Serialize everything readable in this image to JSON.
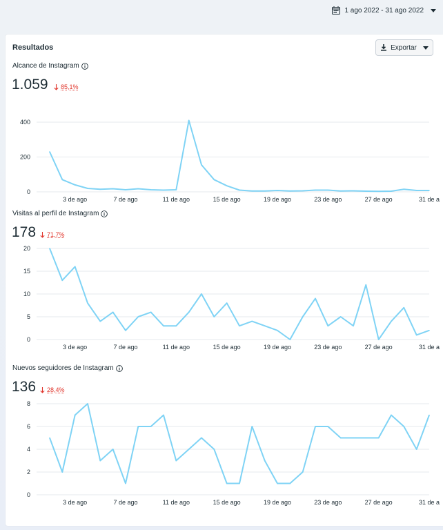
{
  "header": {
    "date_range": "1 ago 2022 - 31 ago 2022"
  },
  "card": {
    "title": "Resultados",
    "export_label": "Exportar"
  },
  "colors": {
    "line": "#7fd3f5",
    "grid": "#e6e9ed",
    "negative": "#e0342b"
  },
  "chart_data": [
    {
      "type": "line",
      "title": "Alcance de Instagram",
      "total": "1.059",
      "change": "85,1%",
      "change_direction": "down",
      "categories": [
        "3 de ago",
        "7 de ago",
        "11 de ago",
        "15 de ago",
        "19 de ago",
        "23 de ago",
        "27 de ago",
        "31 de a"
      ],
      "x": [
        1,
        2,
        3,
        4,
        5,
        6,
        7,
        8,
        9,
        10,
        11,
        12,
        13,
        14,
        15,
        16,
        17,
        18,
        19,
        20,
        21,
        22,
        23,
        24,
        25,
        26,
        27,
        28,
        29,
        30,
        31
      ],
      "series": [
        {
          "values": [
            230,
            70,
            40,
            20,
            15,
            18,
            12,
            18,
            12,
            10,
            12,
            410,
            155,
            70,
            35,
            10,
            5,
            5,
            8,
            5,
            6,
            10,
            10,
            5,
            6,
            4,
            3,
            4,
            15,
            8,
            8
          ]
        }
      ],
      "yticks": [
        0,
        200,
        400
      ],
      "ylim": [
        0,
        420
      ]
    },
    {
      "type": "line",
      "title": "Visitas al perfil de Instagram",
      "total": "178",
      "change": "71,7%",
      "change_direction": "down",
      "categories": [
        "3 de ago",
        "7 de ago",
        "11 de ago",
        "15 de ago",
        "19 de ago",
        "23 de ago",
        "27 de ago",
        "31 de a"
      ],
      "x": [
        1,
        2,
        3,
        4,
        5,
        6,
        7,
        8,
        9,
        10,
        11,
        12,
        13,
        14,
        15,
        16,
        17,
        18,
        19,
        20,
        21,
        22,
        23,
        24,
        25,
        26,
        27,
        28,
        29,
        30,
        31
      ],
      "series": [
        {
          "values": [
            20,
            13,
            16,
            8,
            4,
            6,
            2,
            5,
            6,
            3,
            3,
            6,
            10,
            5,
            8,
            3,
            4,
            3,
            2,
            0,
            5,
            9,
            3,
            5,
            3,
            12,
            0,
            4,
            7,
            1,
            2
          ]
        }
      ],
      "yticks": [
        0,
        5,
        10,
        15,
        20
      ],
      "ylim": [
        0,
        20
      ]
    },
    {
      "type": "line",
      "title": "Nuevos seguidores de Instagram",
      "total": "136",
      "change": "28,4%",
      "change_direction": "down",
      "categories": [
        "3 de ago",
        "7 de ago",
        "11 de ago",
        "15 de ago",
        "19 de ago",
        "23 de ago",
        "27 de ago",
        "31 de a"
      ],
      "x": [
        1,
        2,
        3,
        4,
        5,
        6,
        7,
        8,
        9,
        10,
        11,
        12,
        13,
        14,
        15,
        16,
        17,
        18,
        19,
        20,
        21,
        22,
        23,
        24,
        25,
        26,
        27,
        28,
        29,
        30,
        31
      ],
      "series": [
        {
          "values": [
            5,
            2,
            7,
            8,
            3,
            4,
            1,
            6,
            6,
            7,
            3,
            4,
            5,
            4,
            1,
            1,
            6,
            3,
            1,
            1,
            2,
            6,
            6,
            5,
            5,
            5,
            5,
            7,
            6,
            4,
            7
          ]
        }
      ],
      "yticks": [
        0,
        2,
        4,
        6,
        8
      ],
      "ylim": [
        0,
        8
      ]
    }
  ]
}
